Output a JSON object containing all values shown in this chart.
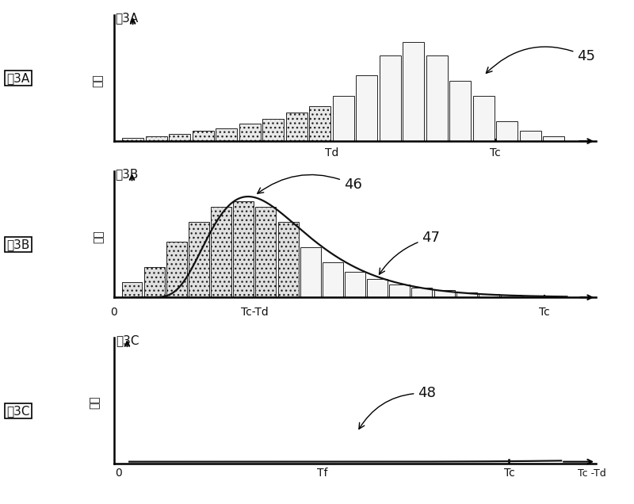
{
  "fig_label_A": "图3A",
  "fig_label_B": "图3B",
  "fig_label_C": "图3C",
  "ylabel_A": "频数",
  "ylabel_B": "频数",
  "ylabel_C": "频数",
  "xlabel_A_td": "Td",
  "xlabel_A_tc": "Tc",
  "xlabel_B_left": "0",
  "xlabel_B_mid": "Tc-Td",
  "xlabel_B_right": "Tc",
  "xlabel_C_0": "0",
  "xlabel_C_tf": "Tf",
  "xlabel_C_tc": "Tc",
  "xlabel_C_right": "Tc -Td",
  "label_45": "45",
  "label_46": "46",
  "label_47": "47",
  "label_48": "48",
  "bg_color": "#ffffff",
  "text_color": "#111111",
  "bar_edge": "#222222",
  "line_color": "#111111",
  "bar_A_heights": [
    0.3,
    0.5,
    0.7,
    1.0,
    1.3,
    1.7,
    2.2,
    2.8,
    3.5,
    4.5,
    6.5,
    8.5,
    9.8,
    8.5,
    6.0,
    4.5,
    2.0,
    1.0,
    0.5
  ],
  "bar_A_Td_idx": 9,
  "bar_B_heights": [
    1.5,
    3.0,
    5.5,
    7.5,
    9.0,
    9.5,
    9.0,
    7.5,
    5.0,
    3.5,
    2.5,
    1.8,
    1.3,
    1.0,
    0.7,
    0.5,
    0.35,
    0.25,
    0.18,
    0.12
  ],
  "bar_B_peak_idx": 5,
  "bar_C_mu": 1.5,
  "bar_C_sigma": 0.5,
  "bar_C_scale": 9.0,
  "bar_C_Tf": 0.45,
  "bar_C_Tc": 0.88
}
